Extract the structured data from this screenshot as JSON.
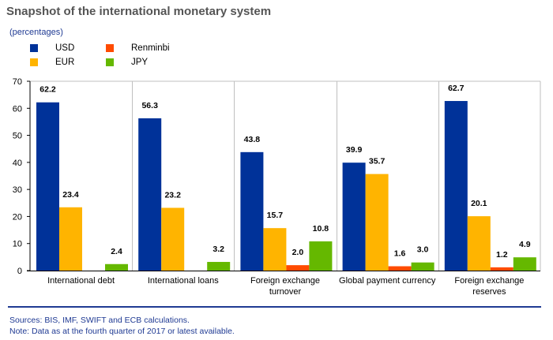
{
  "title": "Snapshot of the international monetary system",
  "subtitle": "(percentages)",
  "legend": [
    {
      "name": "USD",
      "color": "#003299"
    },
    {
      "name": "EUR",
      "color": "#FFB400"
    },
    {
      "name": "Renminbi",
      "color": "#FF4B00"
    },
    {
      "name": "JPY",
      "color": "#65B800"
    }
  ],
  "chart_data": {
    "type": "bar",
    "title": "Snapshot of the international monetary system",
    "ylabel": "(percentages)",
    "ylim": [
      0,
      70
    ],
    "yticks": [
      0,
      10,
      20,
      30,
      40,
      50,
      60,
      70
    ],
    "grid": false,
    "legend_position": "top-left",
    "categories": [
      [
        "International debt"
      ],
      [
        "International loans"
      ],
      [
        "Foreign exchange",
        "turnover"
      ],
      [
        "Global payment currency"
      ],
      [
        "Foreign exchange",
        "reserves"
      ]
    ],
    "series": [
      {
        "name": "USD",
        "color": "#003299",
        "values": [
          62.2,
          56.3,
          43.8,
          39.9,
          62.7
        ]
      },
      {
        "name": "EUR",
        "color": "#FFB400",
        "values": [
          23.4,
          23.2,
          15.7,
          35.7,
          20.1
        ]
      },
      {
        "name": "Renminbi",
        "color": "#FF4B00",
        "values": [
          null,
          null,
          2.0,
          1.6,
          1.2
        ]
      },
      {
        "name": "JPY",
        "color": "#65B800",
        "values": [
          2.4,
          3.2,
          10.8,
          3.0,
          4.9
        ]
      }
    ]
  },
  "notes": {
    "sources": "Sources: BIS, IMF, SWIFT and ECB calculations.",
    "note": "Note: Data as at the fourth quarter of 2017 or latest available."
  }
}
